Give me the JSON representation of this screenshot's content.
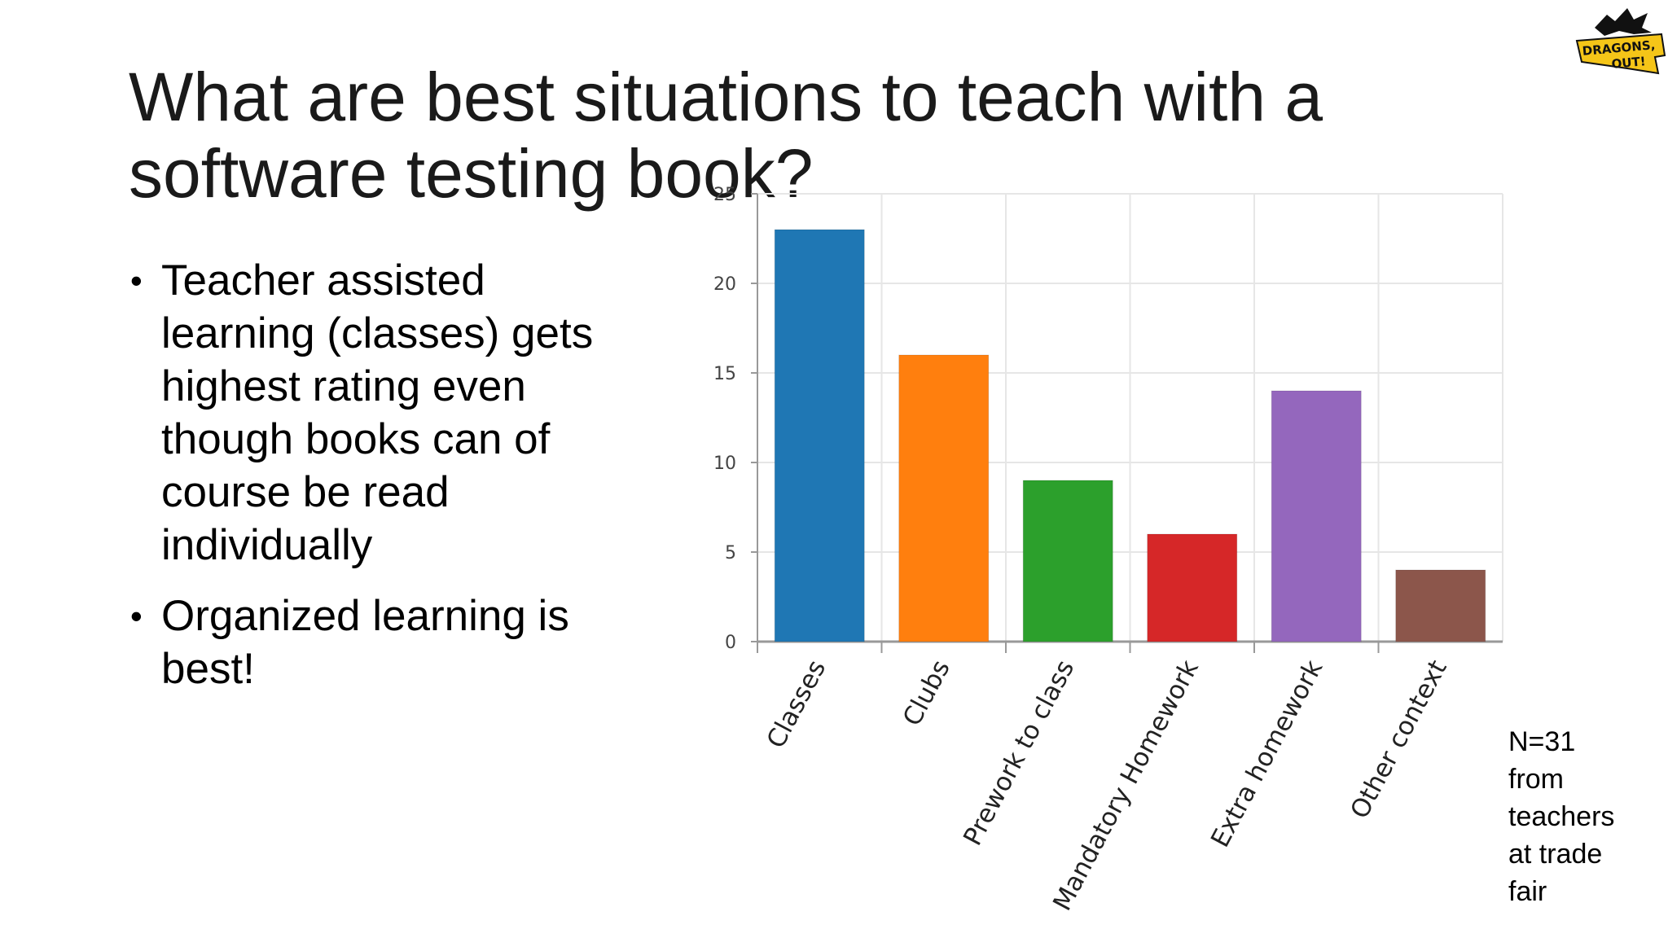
{
  "slide": {
    "title": "What are best situations to teach with a software testing book?",
    "bullets": [
      "Teacher assisted learning (classes) gets highest rating even though books can of course be read individually",
      "Organized learning is best!"
    ],
    "note_lines": [
      "N=31",
      "from",
      "teachers",
      "at trade",
      "fair"
    ],
    "logo_text": [
      "DRAGONS,",
      "OUT!"
    ]
  },
  "chart_data": {
    "type": "bar",
    "title": "",
    "xlabel": "",
    "ylabel": "",
    "categories": [
      "Classes",
      "Clubs",
      "Prework to class",
      "Mandatory Homework",
      "Extra homework",
      "Other context"
    ],
    "values": [
      23,
      16,
      9,
      6,
      14,
      4
    ],
    "colors": [
      "#1f77b4",
      "#ff7f0e",
      "#2ca02c",
      "#d62728",
      "#9467bd",
      "#8c564b"
    ],
    "ylim": [
      0,
      25
    ],
    "yticks": [
      0,
      5,
      10,
      15,
      20,
      25
    ],
    "grid": true,
    "legend": "none"
  }
}
